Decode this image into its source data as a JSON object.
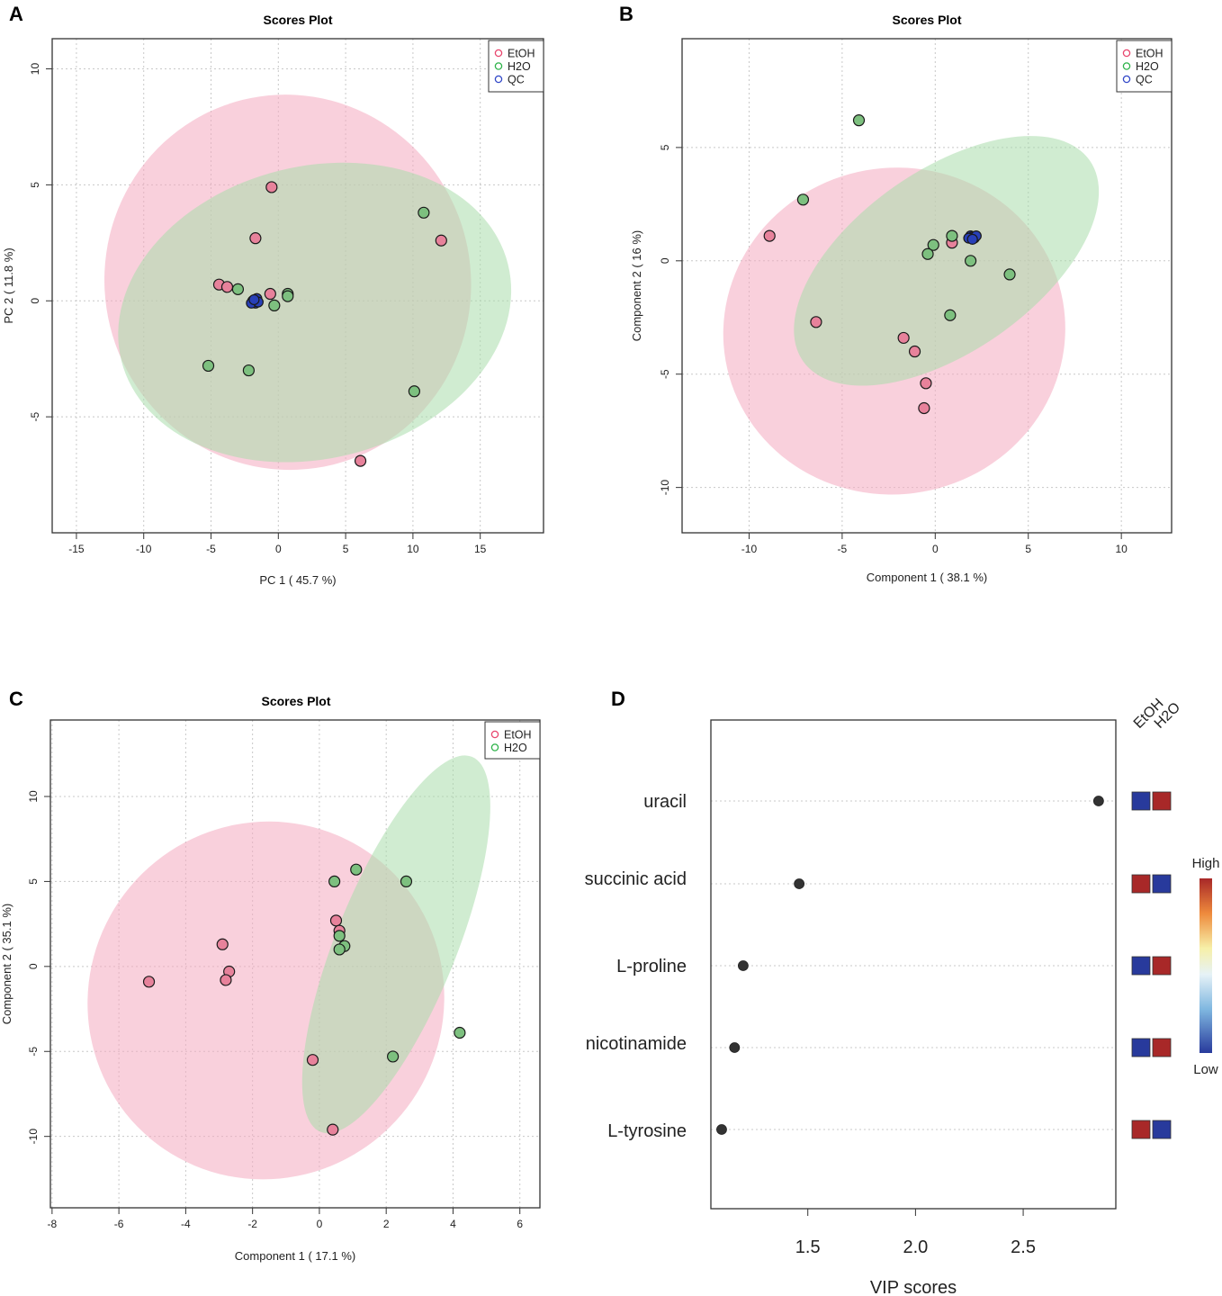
{
  "colors": {
    "etoh": "#e8466e",
    "etoh_fill": "#f4a9bf",
    "etoh_point": "#e7829b",
    "h2o": "#2eb34a",
    "h2o_fill": "#a9dcac",
    "h2o_point": "#7dc07f",
    "qc": "#3248c8",
    "qc_point": "#2840b8",
    "heat_high": "#a82828",
    "heat_low": "#283a9c"
  },
  "chart_data": [
    {
      "id": "A",
      "panel_label": "A",
      "type": "scatter",
      "title": "Scores Plot",
      "xlabel": "PC 1 ( 45.7 %)",
      "ylabel": "PC 2 ( 11.8 %)",
      "xlim": [
        -16.8,
        19.7
      ],
      "ylim": [
        -10.0,
        11.3
      ],
      "xticks": [
        "-15",
        "-10",
        "-5",
        "0",
        "5",
        "10",
        "15"
      ],
      "xtick_values": [
        -15,
        -10,
        -5,
        0,
        5,
        10,
        15
      ],
      "yticks": [
        "-5",
        "0",
        "5",
        "10"
      ],
      "ytick_values": [
        -5,
        0,
        5,
        10
      ],
      "grid": true,
      "legend": {
        "position": "top-right",
        "entries": [
          "EtOH",
          "H2O",
          "QC"
        ]
      },
      "ellipses": [
        {
          "group": "EtOH",
          "cx": 0.7,
          "cy": 0.8,
          "rx": 13.6,
          "ry": 8.1,
          "angle": -14
        },
        {
          "group": "H2O",
          "cx": 2.7,
          "cy": -0.5,
          "rx": 14.8,
          "ry": 6.3,
          "angle": -14
        }
      ],
      "series": [
        {
          "name": "EtOH",
          "points": [
            [
              -0.5,
              4.9
            ],
            [
              -1.7,
              2.7
            ],
            [
              12.1,
              2.6
            ],
            [
              -4.4,
              0.7
            ],
            [
              -3.8,
              0.6
            ],
            [
              -0.6,
              0.3
            ],
            [
              6.1,
              -6.9
            ]
          ]
        },
        {
          "name": "H2O",
          "points": [
            [
              10.8,
              3.8
            ],
            [
              -3.0,
              0.5
            ],
            [
              0.7,
              0.3
            ],
            [
              0.7,
              0.2
            ],
            [
              -0.3,
              -0.2
            ],
            [
              -5.2,
              -2.8
            ],
            [
              -2.2,
              -3.0
            ],
            [
              10.1,
              -3.9
            ]
          ]
        },
        {
          "name": "QC",
          "points": [
            [
              -1.9,
              0.0
            ],
            [
              -1.6,
              0.1
            ],
            [
              -1.7,
              -0.1
            ],
            [
              -2.0,
              -0.1
            ],
            [
              -1.5,
              -0.05
            ],
            [
              -1.8,
              0.05
            ]
          ]
        }
      ]
    },
    {
      "id": "B",
      "panel_label": "B",
      "type": "scatter",
      "title": "Scores Plot",
      "xlabel": "Component 1 ( 38.1 %)",
      "ylabel": "Component 2 ( 16 %)",
      "xlim": [
        -13.6,
        12.7
      ],
      "ylim": [
        -12.0,
        9.8
      ],
      "xticks": [
        "-10",
        "-5",
        "0",
        "5",
        "10"
      ],
      "xtick_values": [
        -10,
        -5,
        0,
        5,
        10
      ],
      "yticks": [
        "-10",
        "-5",
        "0",
        "5"
      ],
      "ytick_values": [
        -10,
        -5,
        0,
        5
      ],
      "grid": true,
      "legend": {
        "position": "top-right",
        "entries": [
          "EtOH",
          "H2O",
          "QC"
        ]
      },
      "ellipses": [
        {
          "group": "EtOH",
          "cx": -2.2,
          "cy": -3.1,
          "rx": 9.2,
          "ry": 7.2,
          "angle": -10
        },
        {
          "group": "H2O",
          "cx": 0.6,
          "cy": 0.0,
          "rx": 9.4,
          "ry": 4.0,
          "angle": -35
        }
      ],
      "series": [
        {
          "name": "EtOH",
          "points": [
            [
              -8.9,
              1.1
            ],
            [
              0.9,
              0.8
            ],
            [
              -6.4,
              -2.7
            ],
            [
              -1.7,
              -3.4
            ],
            [
              -1.1,
              -4.0
            ],
            [
              -0.5,
              -5.4
            ],
            [
              -0.6,
              -6.5
            ]
          ]
        },
        {
          "name": "H2O",
          "points": [
            [
              -4.1,
              6.2
            ],
            [
              -7.1,
              2.7
            ],
            [
              0.9,
              1.1
            ],
            [
              -0.1,
              0.7
            ],
            [
              -0.4,
              0.3
            ],
            [
              1.9,
              0.0
            ],
            [
              4.0,
              -0.6
            ],
            [
              0.8,
              -2.4
            ]
          ]
        },
        {
          "name": "QC",
          "points": [
            [
              1.9,
              1.1
            ],
            [
              2.1,
              1.0
            ],
            [
              2.0,
              1.05
            ],
            [
              1.8,
              1.0
            ],
            [
              2.2,
              1.1
            ],
            [
              2.0,
              0.95
            ]
          ]
        }
      ]
    },
    {
      "id": "C",
      "panel_label": "C",
      "type": "scatter",
      "title": "Scores Plot",
      "xlabel": "Component 1 ( 17.1 %)",
      "ylabel": "Component 2 ( 35.1 %)",
      "xlim": [
        -8.05,
        6.6
      ],
      "ylim": [
        -14.2,
        14.5
      ],
      "xticks": [
        "-8",
        "-6",
        "-4",
        "-2",
        "0",
        "2",
        "4",
        "6"
      ],
      "xtick_values": [
        -8,
        -6,
        -4,
        -2,
        0,
        2,
        4,
        6
      ],
      "yticks": [
        "-10",
        "-5",
        "0",
        "5",
        "10"
      ],
      "ytick_values": [
        -10,
        -5,
        0,
        5,
        10
      ],
      "grid": true,
      "legend": {
        "position": "top-right",
        "entries": [
          "EtOH",
          "H2O"
        ]
      },
      "ellipses": [
        {
          "group": "EtOH",
          "cx": -1.6,
          "cy": -2.0,
          "rx": 5.3,
          "ry": 10.6,
          "angle": 40
        },
        {
          "group": "H2O",
          "cx": 2.3,
          "cy": 1.3,
          "rx": 1.8,
          "ry": 11.9,
          "angle": 22
        }
      ],
      "series": [
        {
          "name": "EtOH",
          "points": [
            [
              -2.9,
              1.3
            ],
            [
              -2.7,
              -0.3
            ],
            [
              -2.8,
              -0.8
            ],
            [
              -5.1,
              -0.9
            ],
            [
              0.5,
              2.7
            ],
            [
              0.6,
              2.1
            ],
            [
              -0.2,
              -5.5
            ],
            [
              0.4,
              -9.6
            ]
          ]
        },
        {
          "name": "H2O",
          "points": [
            [
              1.1,
              5.7
            ],
            [
              0.45,
              5.0
            ],
            [
              2.6,
              5.0
            ],
            [
              0.6,
              1.8
            ],
            [
              0.75,
              1.2
            ],
            [
              0.6,
              1.0
            ],
            [
              4.2,
              -3.9
            ],
            [
              2.2,
              -5.3
            ]
          ]
        }
      ]
    },
    {
      "id": "D",
      "panel_label": "D",
      "type": "scatter",
      "title": "",
      "xlabel": "VIP scores",
      "ylabel": "",
      "xlim": [
        1.05,
        2.93
      ],
      "xticks": [
        "1.5",
        "2.0",
        "2.5"
      ],
      "xtick_values": [
        1.5,
        2.0,
        2.5
      ],
      "grid": true,
      "categories": [
        "uracil",
        "succinic acid",
        "L-proline",
        "nicotinamide",
        "L-tyrosine"
      ],
      "values": [
        2.85,
        1.46,
        1.2,
        1.16,
        1.1
      ],
      "heatmap": {
        "columns": [
          "EtOH",
          "H2O"
        ],
        "levels": [
          [
            "low",
            "high"
          ],
          [
            "high",
            "low"
          ],
          [
            "low",
            "high"
          ],
          [
            "low",
            "high"
          ],
          [
            "high",
            "low"
          ]
        ]
      },
      "colorbar": {
        "high_label": "High",
        "low_label": "Low"
      }
    }
  ]
}
